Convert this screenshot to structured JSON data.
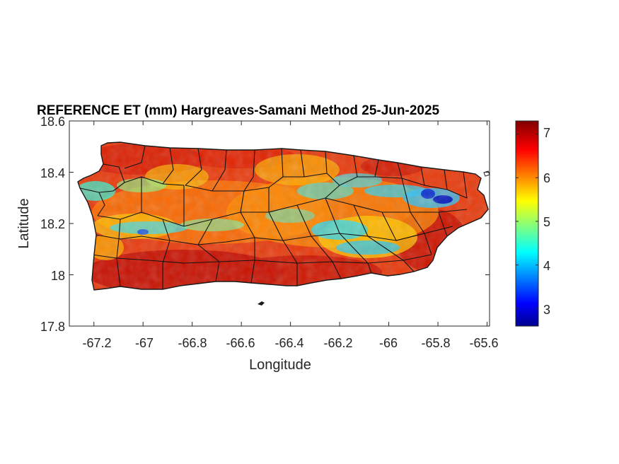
{
  "title": "REFERENCE ET (mm) Hargreaves-Samani Method  25-Jun-2025",
  "xlabel": "Longitude",
  "ylabel": "Latitude",
  "x_ticks": [
    "-67.2",
    "-67",
    "-66.8",
    "-66.6",
    "-66.4",
    "-66.2",
    "-66",
    "-65.8",
    "-65.6"
  ],
  "y_ticks": [
    "18.6",
    "18.4",
    "18.2",
    "18",
    "17.8"
  ],
  "colorbar": {
    "colormap": "jet",
    "ticks": [
      "7",
      "6",
      "5",
      "4",
      "3"
    ],
    "range": [
      2.6,
      7.3
    ]
  },
  "chart_data": {
    "type": "heatmap",
    "title": "REFERENCE ET (mm) Hargreaves-Samani Method  25-Jun-2025",
    "xlabel": "Longitude",
    "ylabel": "Latitude",
    "xlim": [
      -67.3,
      -65.59
    ],
    "ylim": [
      17.8,
      18.6
    ],
    "x_ticks": [
      -67.2,
      -67.0,
      -66.8,
      -66.6,
      -66.4,
      -66.2,
      -66.0,
      -65.8,
      -65.6
    ],
    "y_ticks": [
      18.6,
      18.4,
      18.2,
      18.0,
      17.8
    ],
    "grid": false,
    "value_range": [
      2.6,
      7.3
    ],
    "colorbar_ticks": [
      3,
      4,
      5,
      6,
      7
    ],
    "colormap": "jet"
  }
}
